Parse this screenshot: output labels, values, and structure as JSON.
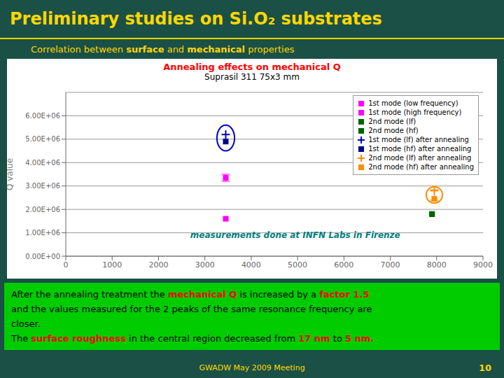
{
  "slide": {
    "title": "Preliminary studies on Si.O₂ substrates",
    "title_color": "#FFD700",
    "background": "#1a5045",
    "subtitle": [
      {
        "text": "Correlation between "
      },
      {
        "text": "surface",
        "bold": true
      },
      {
        "text": " and "
      },
      {
        "text": "mechanical",
        "bold": true
      },
      {
        "text": " properties"
      }
    ],
    "notes_background": "#00cc00",
    "notes": [
      [
        {
          "text": "After the annealing treatment the "
        },
        {
          "text": "mechanical Q",
          "color": "#FF0000",
          "bold": true
        },
        {
          "text": " is increased by a "
        },
        {
          "text": "factor 1.5",
          "color": "#FF0000",
          "bold": true
        }
      ],
      [
        {
          "text": "and the values measured for the 2 peaks of the same resonance frequency are"
        }
      ],
      [
        {
          "text": "closer."
        }
      ],
      [
        {
          "text": "The "
        },
        {
          "text": "surface roughness",
          "color": "#FF0000",
          "bold": true
        },
        {
          "text": " in the central region decreased from "
        },
        {
          "text": "17 nm",
          "color": "#FF0000",
          "bold": true
        },
        {
          "text": " to "
        },
        {
          "text": "5 nm.",
          "color": "#FF0000",
          "bold": true
        }
      ]
    ],
    "footer": "GWADW May 2009 Meeting",
    "page": "10"
  },
  "chart_data": {
    "type": "scatter",
    "title": "Annealing effects on mechanical Q",
    "title_color": "#FF0000",
    "subtitle": "Suprasil 311 75x3 mm",
    "ylabel": "Q value",
    "xlim": [
      0,
      9000
    ],
    "ylim": [
      0,
      7000000
    ],
    "xticks": [
      0,
      1000,
      2000,
      3000,
      4000,
      5000,
      6000,
      7000,
      8000,
      9000
    ],
    "yticks": [
      {
        "value": 0,
        "label": "0.00E+00"
      },
      {
        "value": 1000000,
        "label": "1.00E+06"
      },
      {
        "value": 2000000,
        "label": "2.00E+06"
      },
      {
        "value": 3000000,
        "label": "3.00E+06"
      },
      {
        "value": 4000000,
        "label": "4.00E+06"
      },
      {
        "value": 5000000,
        "label": "5.00E+06"
      },
      {
        "value": 6000000,
        "label": "6.00E+06"
      }
    ],
    "grid": true,
    "legend": "upper right",
    "series": [
      {
        "name": "1st mode (low frequency)",
        "color": "#FF00FF",
        "marker": "square",
        "x": [
          3450
        ],
        "values": [
          1600000
        ]
      },
      {
        "name": "1st mode (high frequency)",
        "color": "#FF00FF",
        "marker": "square",
        "x": [
          3450
        ],
        "values": [
          3350000
        ]
      },
      {
        "name": "2nd mode (lf)",
        "color": "#006400",
        "marker": "square",
        "x": [
          7900
        ],
        "values": [
          1800000
        ]
      },
      {
        "name": "2nd mode (hf)",
        "color": "#006400",
        "marker": "square",
        "x": [
          7900
        ],
        "values": [
          1800000
        ]
      },
      {
        "name": "1st mode (lf) after annealing",
        "color": "#0000CD",
        "marker": "plus",
        "x": [
          3450
        ],
        "values": [
          5200000
        ]
      },
      {
        "name": "1st mode (hf) after annealing",
        "color": "#00008B",
        "marker": "square",
        "x": [
          3450
        ],
        "values": [
          4900000
        ]
      },
      {
        "name": "2nd mode (lf) after annealing",
        "color": "#FF8C00",
        "marker": "plus",
        "x": [
          7950
        ],
        "values": [
          2800000
        ]
      },
      {
        "name": "2nd mode (hf) after annealing",
        "color": "#FF8C00",
        "marker": "square",
        "x": [
          7950
        ],
        "values": [
          2450000
        ]
      }
    ],
    "error_bars": [
      {
        "x": 3450,
        "y": 3350000,
        "yerr": 150000,
        "color": "#FF00FF"
      },
      {
        "x": 7950,
        "y": 2620000,
        "yerr": 220000,
        "color": "#FF8C00"
      }
    ],
    "ellipses": [
      {
        "x": 3450,
        "y": 5050000,
        "width": 380,
        "height": 1100000,
        "color": "#0000CD"
      },
      {
        "x": 7950,
        "y": 2620000,
        "width": 350,
        "height": 700000,
        "color": "#FF8C00"
      }
    ],
    "annotations": [
      {
        "text": "measurements done at INFN Labs in Firenze",
        "color": "#008080"
      }
    ]
  }
}
